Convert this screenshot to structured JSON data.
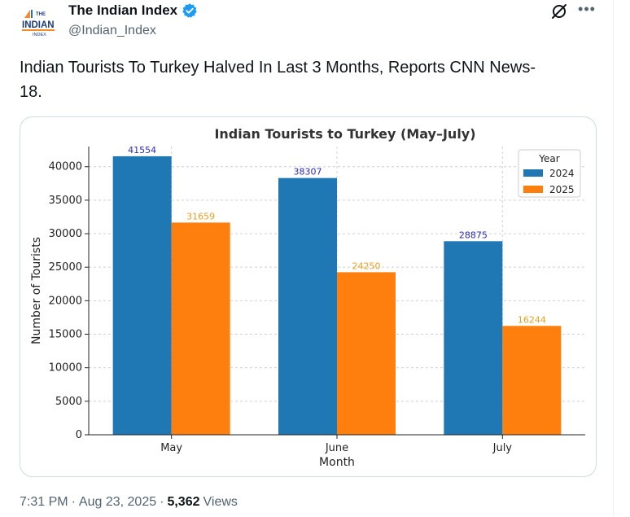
{
  "post": {
    "author": {
      "display_name": "The Indian Index",
      "handle": "@Indian_Index",
      "avatar_logo": {
        "line1": "THE",
        "line2": "INDIAN",
        "line3": "INDEX"
      }
    },
    "text": "Indian Tourists To Turkey Halved In Last 3 Months, Reports CNN News-\n18.",
    "meta": {
      "time": "7:31 PM",
      "separator": "·",
      "date": "Aug 23, 2025",
      "views_count": "5,362",
      "views_label": "Views"
    },
    "icons": {
      "verified": "verified-badge-icon",
      "grok": "grok-icon",
      "more": "more-icon"
    }
  },
  "colors": {
    "series_2024": "#1f77b4",
    "series_2025": "#ff7f0e",
    "label_2024": "#2b2bb8",
    "label_2025": "#e8a020",
    "verified": "#1d9bf0"
  },
  "chart_data": {
    "type": "bar",
    "title": "Indian Tourists to Turkey (May–July)",
    "xlabel": "Month",
    "ylabel": "Number of Tourists",
    "categories": [
      "May",
      "June",
      "July"
    ],
    "series": [
      {
        "name": "2024",
        "values": [
          41554,
          38307,
          28875
        ]
      },
      {
        "name": "2025",
        "values": [
          31659,
          24250,
          16244
        ]
      }
    ],
    "ylim": [
      0,
      43000
    ],
    "yticks": [
      0,
      5000,
      10000,
      15000,
      20000,
      25000,
      30000,
      35000,
      40000
    ],
    "grid": true,
    "legend": {
      "title": "Year",
      "placement": "top-right"
    }
  }
}
